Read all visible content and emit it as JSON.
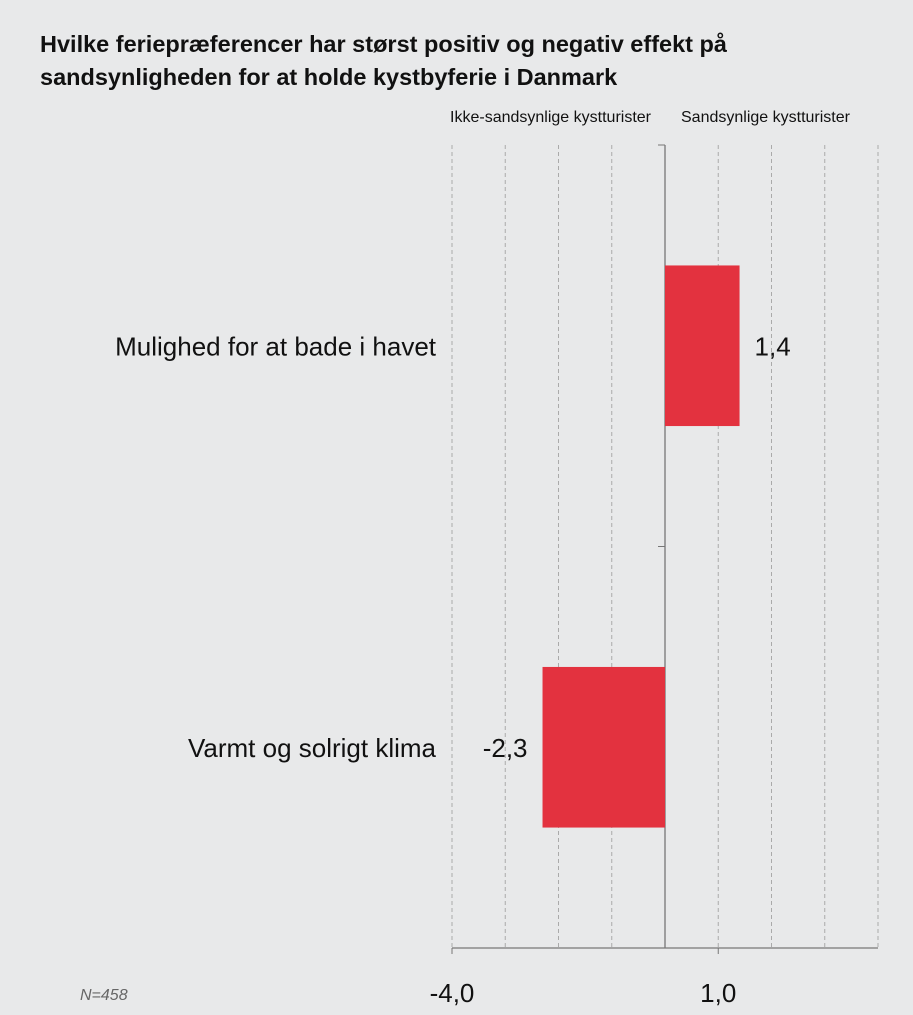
{
  "chart_data": {
    "type": "hbar",
    "title": "Hvilke feriepræferencer har størst positiv og negativ effekt på sandsynligheden for at holde kystbyferie i Danmark",
    "left_label": "Ikke-sandsynlige kystturister",
    "right_label": "Sandsynlige kystturister",
    "categories": [
      "Mulighed for at bade i havet",
      "Varmt og solrigt klima"
    ],
    "values": [
      1.4,
      -2.3
    ],
    "value_labels": [
      "1,4",
      "-2,3"
    ],
    "color": "#e3323f",
    "xlim": [
      -4,
      4
    ],
    "xticks": [
      {
        "value": -4,
        "label": "-4,0"
      },
      {
        "value": 1,
        "label": "1,0"
      }
    ],
    "grid_ticks": [
      -4,
      -3,
      -2,
      -1,
      1,
      2,
      3,
      4
    ],
    "grid": true,
    "note": "N=458"
  }
}
